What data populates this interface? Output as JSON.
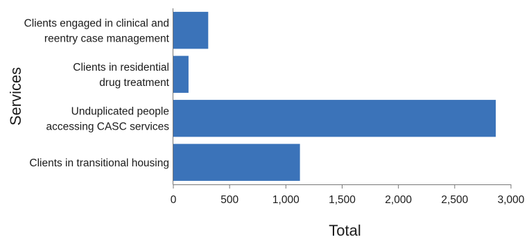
{
  "chart_data": {
    "type": "bar",
    "orientation": "horizontal",
    "categories": [
      "Clients engaged in clinical and reentry case management",
      "Clients in residential drug treatment",
      "Unduplicated people accessing CASC services",
      "Clients in transitional housing"
    ],
    "category_label_lines": [
      [
        "Clients engaged in clinical and",
        "reentry case management"
      ],
      [
        "Clients in residential",
        "drug treatment"
      ],
      [
        "Unduplicated people",
        "accessing CASC services"
      ],
      [
        "Clients in transitional housing"
      ]
    ],
    "values": [
      310,
      135,
      2865,
      1125
    ],
    "xlabel": "Total",
    "ylabel": "Services",
    "xlim": [
      0,
      3000
    ],
    "xticks": [
      0,
      500,
      1000,
      1500,
      2000,
      2500,
      3000
    ],
    "xtick_labels": [
      "0",
      "500",
      "1,000",
      "1,500",
      "2,000",
      "2,500",
      "3,000"
    ],
    "bar_color": "#3b73b9",
    "grid": false,
    "legend": "none"
  }
}
